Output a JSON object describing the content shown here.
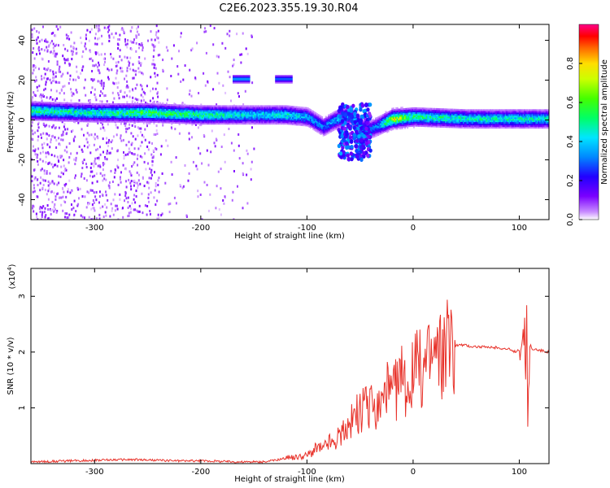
{
  "title": "C2E6.2023.355.19.30.R04",
  "chart_data": [
    {
      "type": "heatmap",
      "xlabel": "Height of straight line (km)",
      "ylabel": "Frequency (Hz)",
      "xlim": [
        -360,
        128
      ],
      "ylim": [
        -50,
        48
      ],
      "x_ticks": [
        -300,
        -200,
        -100,
        0,
        100
      ],
      "x_tick_labels": [
        "-300",
        "-200",
        "-100",
        "0",
        "100"
      ],
      "y_ticks": [
        -40,
        -20,
        0,
        20,
        40
      ],
      "y_tick_labels": [
        "-40",
        "-20",
        "0",
        "20",
        "40"
      ],
      "colorbar": {
        "label": "Normalized spectral amplitude",
        "range": [
          0,
          1
        ],
        "ticks": [
          0.0,
          0.2,
          0.4,
          0.6,
          0.8
        ],
        "tick_labels": [
          "0.0",
          "0.2",
          "0.4",
          "0.6",
          "0.8"
        ],
        "colormap": "rainbow (white → purple → blue → cyan → green → yellow → orange → red → magenta)"
      },
      "ridge": [
        {
          "x": -360,
          "freq": 5,
          "amp": 0.5
        },
        {
          "x": -300,
          "freq": 4,
          "amp": 0.45
        },
        {
          "x": -250,
          "freq": 4,
          "amp": 0.55
        },
        {
          "x": -200,
          "freq": 3,
          "amp": 0.5
        },
        {
          "x": -150,
          "freq": 3,
          "amp": 0.4
        },
        {
          "x": -120,
          "freq": 3,
          "amp": 0.45
        },
        {
          "x": -100,
          "freq": 2,
          "amp": 0.35
        },
        {
          "x": -85,
          "freq": -3,
          "amp": 0.3
        },
        {
          "x": -75,
          "freq": 0,
          "amp": 0.35
        },
        {
          "x": -60,
          "freq": 3,
          "amp": 0.35
        },
        {
          "x": -45,
          "freq": -5,
          "amp": 0.3
        },
        {
          "x": -35,
          "freq": -3,
          "amp": 0.3
        },
        {
          "x": -20,
          "freq": 1,
          "amp": 0.7
        },
        {
          "x": 0,
          "freq": 2,
          "amp": 0.5
        },
        {
          "x": 50,
          "freq": 1,
          "amp": 0.45
        },
        {
          "x": 100,
          "freq": 1,
          "amp": 0.45
        },
        {
          "x": 128,
          "freq": 1,
          "amp": 0.45
        }
      ],
      "features": [
        {
          "x_range": [
            -170,
            -155
          ],
          "freq": 21,
          "amp": 0.35
        },
        {
          "x_range": [
            -130,
            -115
          ],
          "freq": 21,
          "amp": 0.3
        },
        {
          "x_range": [
            -70,
            -40
          ],
          "freq_range": [
            -20,
            8
          ],
          "amp": 0.3
        }
      ]
    },
    {
      "type": "line",
      "xlabel": "Height of straight line (km)",
      "ylabel": "SNR (10 * v/v)",
      "y_scale_label": "(x10",
      "y_scale_exponent": "4",
      "xlim": [
        -360,
        128
      ],
      "ylim": [
        0,
        3.5
      ],
      "x_ticks": [
        -300,
        -200,
        -100,
        0,
        100
      ],
      "x_tick_labels": [
        "-300",
        "-200",
        "-100",
        "0",
        "100"
      ],
      "y_ticks": [
        1,
        2,
        3
      ],
      "y_tick_labels": [
        "1",
        "2",
        "3"
      ],
      "color": "#e8332b",
      "series": [
        {
          "x": [
            -360,
            -340,
            -320,
            -300,
            -280,
            -260,
            -240,
            -220,
            -200,
            -180,
            -160,
            -140,
            -130,
            -120,
            -110,
            -100,
            -95,
            -90,
            -85,
            -80,
            -75,
            -70,
            -65,
            -60,
            -55,
            -50,
            -45,
            -40,
            -35,
            -30,
            -25,
            -20,
            -15,
            -10,
            -5,
            0,
            5,
            10,
            15,
            20,
            25,
            30,
            35,
            40,
            45,
            50,
            55,
            60,
            70,
            80,
            90,
            95,
            100,
            103,
            105,
            106,
            107,
            108,
            110,
            113,
            116,
            120,
            128
          ],
          "values": [
            0.03,
            0.04,
            0.05,
            0.06,
            0.07,
            0.07,
            0.06,
            0.05,
            0.05,
            0.04,
            0.03,
            0.03,
            0.06,
            0.1,
            0.12,
            0.15,
            0.22,
            0.3,
            0.25,
            0.4,
            0.35,
            0.5,
            0.55,
            0.7,
            0.85,
            0.9,
            1.0,
            1.0,
            0.95,
            1.1,
            1.3,
            1.2,
            1.4,
            1.5,
            1.45,
            1.6,
            1.7,
            1.75,
            1.85,
            1.95,
            2.0,
            2.05,
            2.1,
            2.12,
            2.13,
            2.12,
            2.1,
            2.1,
            2.08,
            2.08,
            2.05,
            2.0,
            2.05,
            2.15,
            2.4,
            1.6,
            2.8,
            0.9,
            2.0,
            2.05,
            2.05,
            2.03,
            2.0
          ]
        }
      ]
    }
  ]
}
